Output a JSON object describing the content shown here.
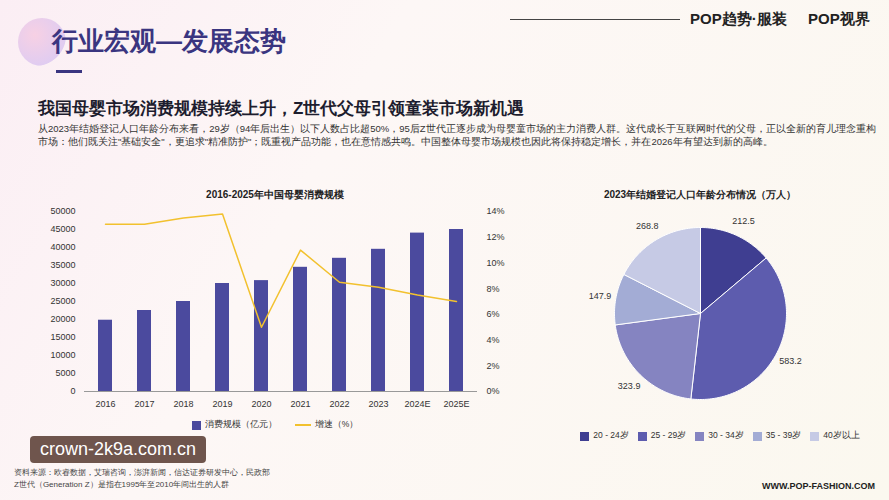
{
  "header": {
    "title": "行业宏观—发展态势",
    "logo": [
      "POP趋势·服装",
      "POP视界"
    ]
  },
  "headline": "我国母婴市场消费规模持续上升，Z世代父母引领童装市场新机遇",
  "body": "从2023年结婚登记人口年龄分布来看，29岁（94年后出生）以下人数占比超50%，95后Z世代正逐步成为母婴童市场的主力消费人群。这代成长于互联网时代的父母，正以全新的育儿理念重构市场：他们既关注\"基础安全\"，更追求\"精准防护\"；既重视产品功能，也在意情感共鸣。中国整体母婴市场规模也因此将保持稳定增长，并在2026年有望达到新的高峰。",
  "chart_data": [
    {
      "type": "bar",
      "title": "2016-2025年中国母婴消费规模",
      "categories": [
        "2016",
        "2017",
        "2018",
        "2019",
        "2020",
        "2021",
        "2022",
        "2023",
        "2024E",
        "2025E"
      ],
      "series": [
        {
          "name": "消费规模（亿元）",
          "type": "bar",
          "color": "#4b4a9e",
          "values": [
            19800,
            22500,
            25000,
            30000,
            30800,
            34500,
            37000,
            39500,
            44000,
            45000
          ]
        },
        {
          "name": "增速（%）",
          "type": "line",
          "axis": "y2",
          "color": "#f2c12e",
          "values": [
            13,
            13,
            13.5,
            13.8,
            5,
            11,
            8.5,
            8.1,
            7.5,
            7
          ]
        }
      ],
      "ylim": [
        0,
        50000
      ],
      "yticks": [
        0,
        5000,
        10000,
        15000,
        20000,
        25000,
        30000,
        35000,
        40000,
        45000,
        50000
      ],
      "y2lim": [
        0,
        14
      ],
      "y2ticks": [
        {
          "value": 0,
          "label": "0%"
        },
        {
          "value": 2,
          "label": "2%"
        },
        {
          "value": 4,
          "label": "4%"
        },
        {
          "value": 6,
          "label": "6%"
        },
        {
          "value": 8,
          "label": "8%"
        },
        {
          "value": 10,
          "label": "10%"
        },
        {
          "value": 12,
          "label": "12%"
        },
        {
          "value": 14,
          "label": "14%"
        }
      ],
      "grid": false,
      "legend": "bottom"
    },
    {
      "type": "pie",
      "title": "2023年结婚登记人口年龄分布情况（万人）",
      "categories": [
        "20 - 24岁",
        "25 - 29岁",
        "30 - 34岁",
        "35 - 39岁",
        "40岁以上"
      ],
      "values": [
        212.5,
        583.2,
        323.9,
        147.9,
        268.8
      ],
      "colors": [
        "#3f3e91",
        "#5d5cae",
        "#8584c1",
        "#a3acd5",
        "#c6cae5"
      ],
      "data_labels": true,
      "legend": "bottom"
    }
  ],
  "footer": {
    "source": "资料来源：欧睿数据，艾瑞咨询，澎湃新闻，信达证券研发中心，民政部",
    "note": "Z世代（Generation Z）是指在1995年至2010年间出生的人群",
    "url": "WWW.POP-FASHION.COM"
  },
  "watermark": "crown-2k9a.com.cn"
}
